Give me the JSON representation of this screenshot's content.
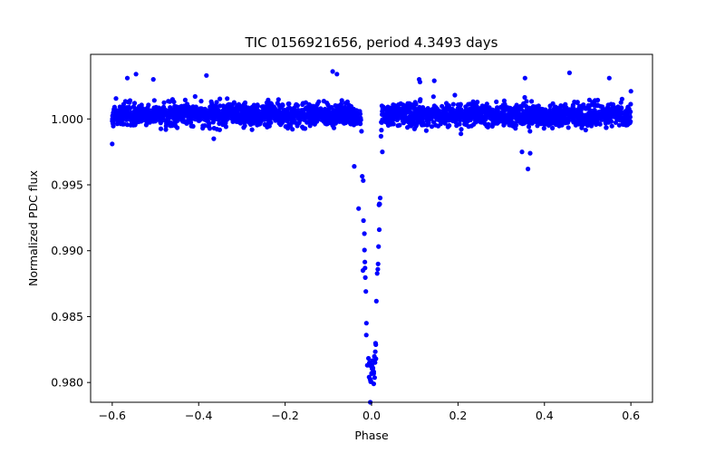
{
  "chart_data": {
    "type": "scatter",
    "title": "TIC 0156921656, period 4.3493 days",
    "xlabel": "Phase",
    "ylabel": "Normalized PDC flux",
    "xlim": [
      -0.65,
      0.65
    ],
    "ylim": [
      0.9785,
      1.0049
    ],
    "x_ticks": [
      -0.6,
      -0.4,
      -0.2,
      0.0,
      0.2,
      0.4,
      0.6
    ],
    "x_tick_labels": [
      "−0.6",
      "−0.4",
      "−0.2",
      "0.0",
      "0.2",
      "0.4",
      "0.6"
    ],
    "y_ticks": [
      0.98,
      0.985,
      0.99,
      0.995,
      1.0
    ],
    "y_tick_labels": [
      "0.980",
      "0.985",
      "0.990",
      "0.995",
      "1.000"
    ],
    "marker_color": "#0000ff",
    "grid": false,
    "legend": "none",
    "baseline": {
      "flux": 1.0003,
      "scatter": 0.0007,
      "phase_range": [
        -0.6,
        0.6
      ],
      "phase_step": 0.00045
    },
    "transit": {
      "center_phase": -0.0005,
      "depth": 0.0195,
      "half_duration": 0.024,
      "min_flux": 0.9785
    },
    "points": [
      {
        "x": -0.6,
        "y": 0.9981
      },
      {
        "x": -0.565,
        "y": 1.0031
      },
      {
        "x": -0.545,
        "y": 1.0034
      },
      {
        "x": -0.505,
        "y": 1.003
      },
      {
        "x": -0.382,
        "y": 1.0033
      },
      {
        "x": -0.365,
        "y": 0.9985
      },
      {
        "x": -0.09,
        "y": 1.0036
      },
      {
        "x": -0.08,
        "y": 1.0034
      },
      {
        "x": 0.11,
        "y": 1.003
      },
      {
        "x": 0.112,
        "y": 1.0028
      },
      {
        "x": 0.145,
        "y": 1.0029
      },
      {
        "x": 0.348,
        "y": 0.9975
      },
      {
        "x": 0.355,
        "y": 1.0031
      },
      {
        "x": 0.362,
        "y": 0.9962
      },
      {
        "x": 0.367,
        "y": 0.9974
      },
      {
        "x": 0.458,
        "y": 1.0035
      },
      {
        "x": 0.55,
        "y": 1.0031
      },
      {
        "x": 0.6,
        "y": 1.0021
      },
      {
        "x": -0.04,
        "y": 0.9964
      },
      {
        "x": -0.03,
        "y": 0.9932
      },
      {
        "x": -0.02,
        "y": 0.9885
      },
      {
        "x": -0.012,
        "y": 0.9845
      },
      {
        "x": -0.005,
        "y": 0.9815
      },
      {
        "x": 0.0,
        "y": 0.9807
      },
      {
        "x": 0.005,
        "y": 0.9799
      },
      {
        "x": 0.01,
        "y": 0.9818
      },
      {
        "x": 0.015,
        "y": 0.989
      },
      {
        "x": 0.02,
        "y": 0.994
      },
      {
        "x": 0.025,
        "y": 0.9975
      },
      {
        "x": -0.003,
        "y": 0.9785
      }
    ]
  }
}
